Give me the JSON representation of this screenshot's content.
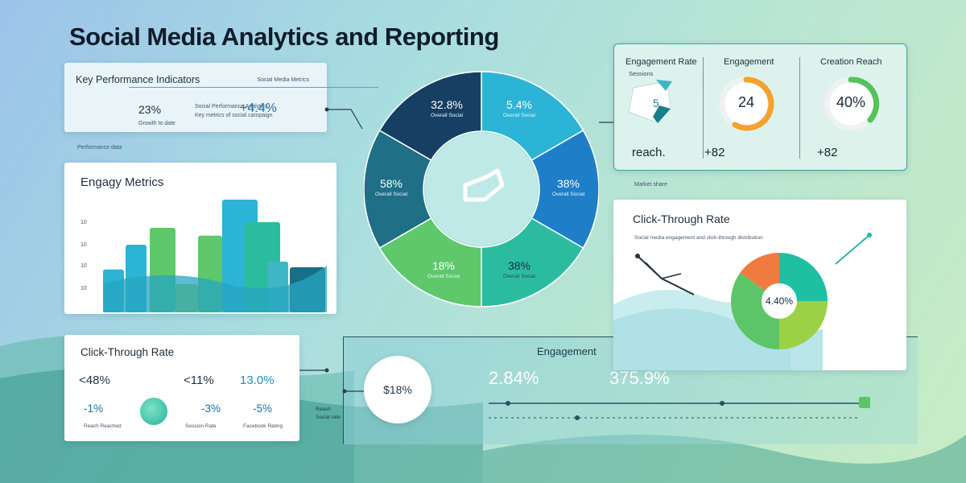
{
  "page_title": "Social Media Analytics and Reporting",
  "kpi": {
    "title": "Key Performance Indicators",
    "header_note": "Social Media Metrics",
    "value_left": "23%",
    "value_right": "+4.4%",
    "desc1": "Social Performance Analytics",
    "desc2": "Key metrics of social campaign",
    "desc3": "Growth to date"
  },
  "note_performance": "Performance data",
  "bar_card": {
    "title": "Engagy Metrics"
  },
  "ctr_left": {
    "title": "Click-Through Rate",
    "m1": "<48%",
    "m2": "<11%",
    "m3": "13.0%",
    "s1": "-1%",
    "s2": "-3%",
    "s3": "-5%",
    "l1": "Reach Reached",
    "l2": "Session Rate",
    "l3": "Facebook Rating"
  },
  "donut": {
    "tl": "32.8%",
    "tr": "5.4%",
    "r": "38%",
    "br": "38%",
    "bl": "18%",
    "l": "58%",
    "sub": "Overall Social"
  },
  "engagement_card": {
    "h1": "Engagement Rate",
    "h1_sub": "Sessions",
    "h2": "Engagement",
    "h3": "Creation Reach",
    "shape_value": "5",
    "reach_label": "reach.",
    "gauge1": "24",
    "gauge2": "40%",
    "foot2": "+82",
    "foot3": "+82"
  },
  "note_market": "Market share",
  "ctr_right": {
    "title": "Click-Through Rate",
    "subtitle": "Social media engagement and click-through distribution",
    "pie_label": "4.40%"
  },
  "engagement_bottom": {
    "title": "Engagement",
    "n1": "2.84%",
    "n2": "375.9%",
    "circle": "$18%",
    "caption1": "Reach",
    "caption2": "Social rate"
  },
  "chart_data": [
    {
      "type": "bar",
      "title": "Engagy Metrics",
      "ytick_labels": [
        "10",
        "10",
        "10",
        "10"
      ],
      "values": [
        38,
        60,
        75,
        25,
        68,
        100,
        80,
        45,
        40
      ],
      "ylim": [
        0,
        100
      ],
      "grid": false
    },
    {
      "type": "pie",
      "subtype": "donut",
      "labels": [
        "32.8%",
        "5.4%",
        "38%",
        "38%",
        "18%",
        "58%"
      ],
      "colors": [
        "#2bb4d5",
        "#1e7fc8",
        "#2bbca0",
        "#5ec86a",
        "#1f6f86",
        "#173f64"
      ]
    },
    {
      "type": "pie",
      "title": "Click-Through Rate",
      "values": [
        25,
        25,
        35,
        15
      ],
      "colors": [
        "#1fbfa4",
        "#9cd146",
        "#5cc56a",
        "#f07b3f"
      ],
      "center_label": "4.40%"
    }
  ]
}
